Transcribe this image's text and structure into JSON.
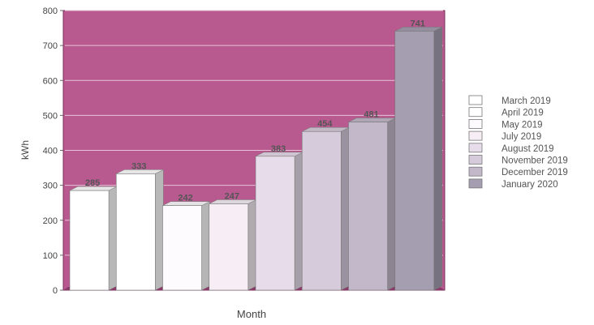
{
  "chart_data": {
    "type": "bar",
    "title": "",
    "xlabel": "Month",
    "ylabel": "kWh",
    "ylim": [
      0,
      800
    ],
    "yticks": [
      0,
      100,
      200,
      300,
      400,
      500,
      600,
      700,
      800
    ],
    "grid": true,
    "legend_position": "right",
    "plot_background": "#b85a8f",
    "series": [
      {
        "name": "March 2019",
        "value": 285,
        "label": "285",
        "color": "#ffffff"
      },
      {
        "name": "April 2019",
        "value": 333,
        "label": "333",
        "color": "#ffffff"
      },
      {
        "name": "May 2019",
        "value": 242,
        "label": "242",
        "color": "#fdfbfd"
      },
      {
        "name": "July 2019",
        "value": 247,
        "label": "247",
        "color": "#f6eef4"
      },
      {
        "name": "August 2019",
        "value": 383,
        "label": "383",
        "color": "#e7dcea"
      },
      {
        "name": "November 2019",
        "value": 454,
        "label": "454",
        "color": "#d6cbdb"
      },
      {
        "name": "December 2019",
        "value": 481,
        "label": "481",
        "color": "#c2b8ca"
      },
      {
        "name": "January 2020",
        "value": 741,
        "label": "741",
        "color": "#a59eb0"
      }
    ]
  }
}
